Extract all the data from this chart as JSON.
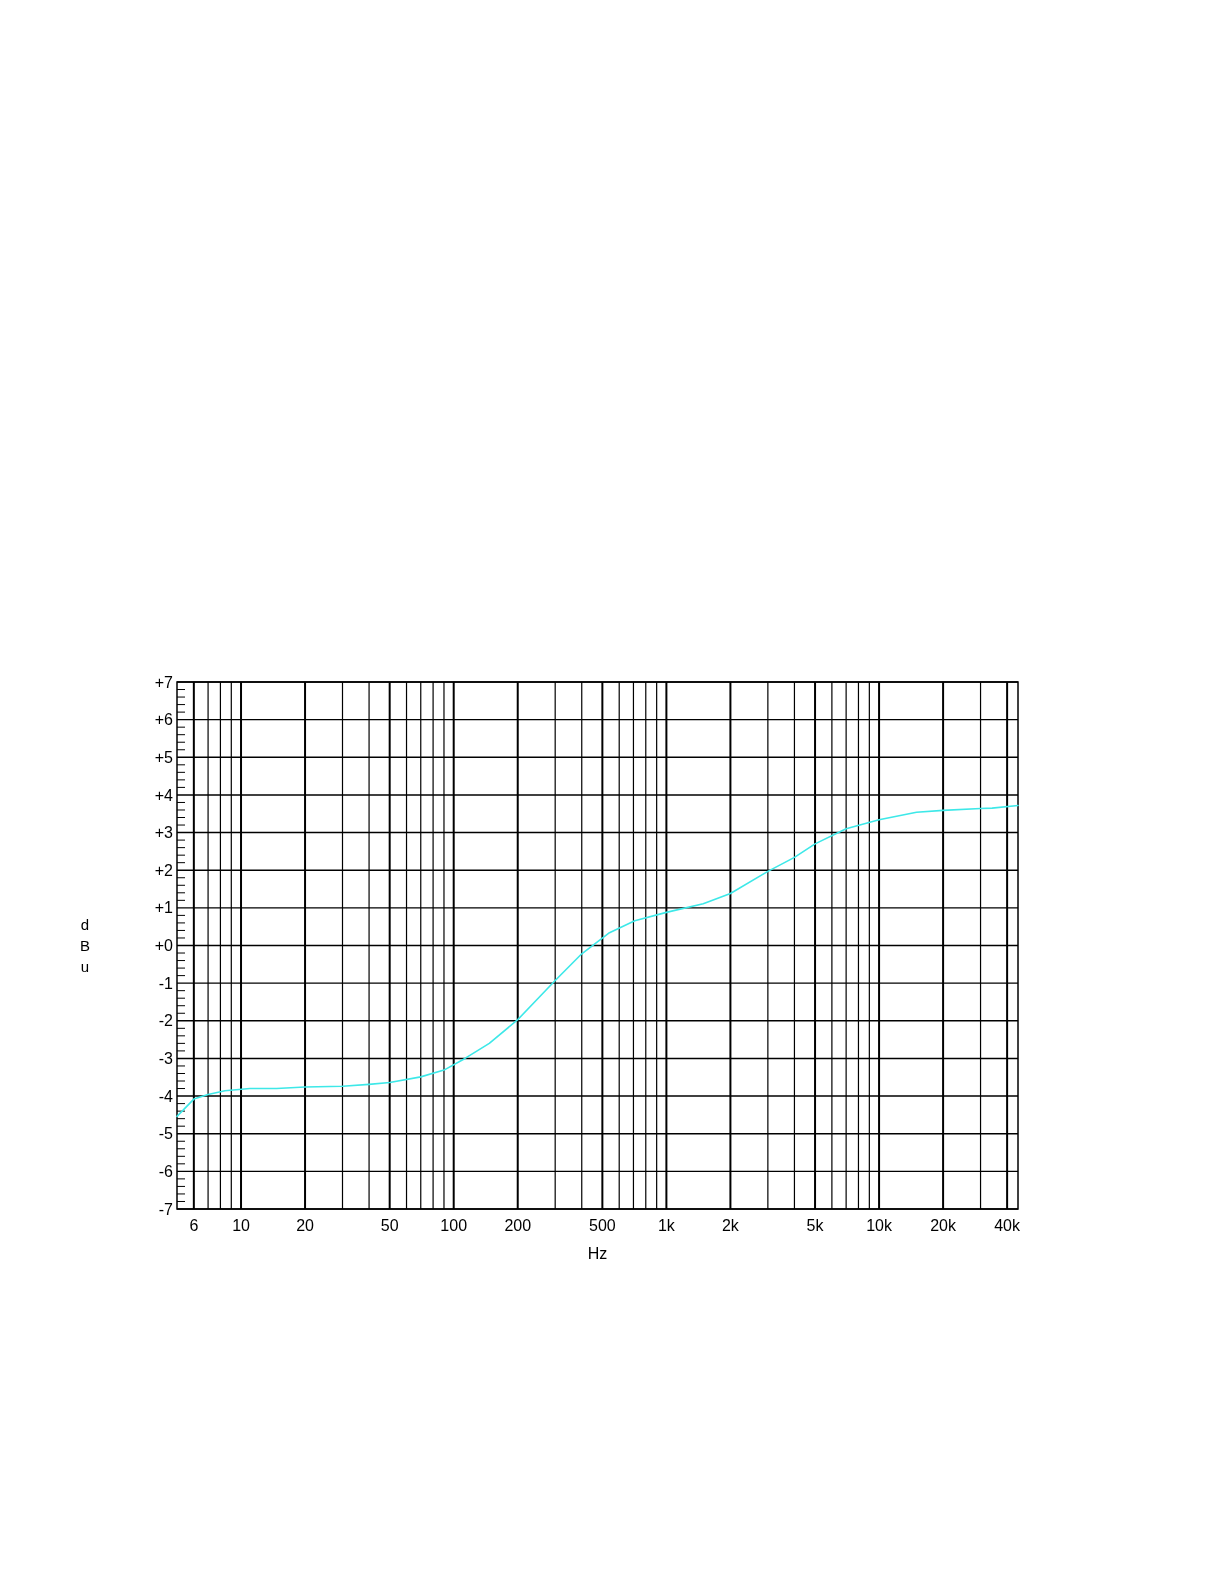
{
  "chart_data": {
    "type": "line",
    "xlabel": "Hz",
    "ylabel": "dBu",
    "log": "x",
    "grid": true,
    "marker": "none",
    "line_style": "solid",
    "xlim": [
      5,
      45000
    ],
    "ylim": [
      -7,
      7
    ],
    "xticks": [
      6,
      {
        "value": 7,
        "label": null
      },
      {
        "value": 8,
        "label": null
      },
      {
        "value": 9,
        "label": null
      },
      10,
      20,
      {
        "value": 30,
        "label": null
      },
      {
        "value": 40,
        "label": null
      },
      50,
      {
        "value": 60,
        "label": null
      },
      {
        "value": 70,
        "label": null
      },
      {
        "value": 80,
        "label": null
      },
      {
        "value": 90,
        "label": null
      },
      100,
      200,
      {
        "value": 300,
        "label": null
      },
      {
        "value": 400,
        "label": null
      },
      500,
      {
        "value": 600,
        "label": null
      },
      {
        "value": 700,
        "label": null
      },
      {
        "value": 800,
        "label": null
      },
      {
        "value": 900,
        "label": null
      },
      {
        "value": 1000,
        "label": "1k"
      },
      {
        "value": 2000,
        "label": "2k"
      },
      {
        "value": 3000,
        "label": null
      },
      {
        "value": 4000,
        "label": null
      },
      {
        "value": 5000,
        "label": "5k"
      },
      {
        "value": 6000,
        "label": null
      },
      {
        "value": 7000,
        "label": null
      },
      {
        "value": 8000,
        "label": null
      },
      {
        "value": 9000,
        "label": null
      },
      {
        "value": 10000,
        "label": "10k"
      },
      {
        "value": 20000,
        "label": "20k"
      },
      {
        "value": 30000,
        "label": null
      },
      {
        "value": 40000,
        "label": "40k"
      }
    ],
    "yticks": [
      {
        "value": 7,
        "label": "+7"
      },
      {
        "value": 6,
        "label": "+6"
      },
      {
        "value": 5,
        "label": "+5"
      },
      {
        "value": 4,
        "label": "+4"
      },
      {
        "value": 3,
        "label": "+3"
      },
      {
        "value": 2,
        "label": "+2"
      },
      {
        "value": 1,
        "label": "+1"
      },
      {
        "value": 0,
        "label": "+0"
      },
      -1,
      -2,
      -3,
      -4,
      -5,
      -6,
      -7
    ],
    "series": [
      {
        "color": "#3de8e8",
        "x": [
          5,
          6,
          7,
          8.4,
          11,
          14.7,
          20,
          30,
          40,
          50,
          70,
          90,
          113,
          147,
          200,
          300,
          400,
          540,
          710,
          1000,
          1490,
          2000,
          3000,
          4000,
          5000,
          7000,
          10000,
          15000,
          20000,
          30000,
          34000,
          45000
        ],
        "values": [
          -4.54,
          -4.08,
          -3.96,
          -3.86,
          -3.8,
          -3.8,
          -3.76,
          -3.74,
          -3.69,
          -3.64,
          -3.49,
          -3.31,
          -3.0,
          -2.6,
          -1.97,
          -0.93,
          -0.22,
          0.34,
          0.66,
          0.88,
          1.11,
          1.38,
          1.97,
          2.34,
          2.7,
          3.1,
          3.34,
          3.54,
          3.59,
          3.64,
          3.65,
          3.72
        ]
      }
    ]
  }
}
